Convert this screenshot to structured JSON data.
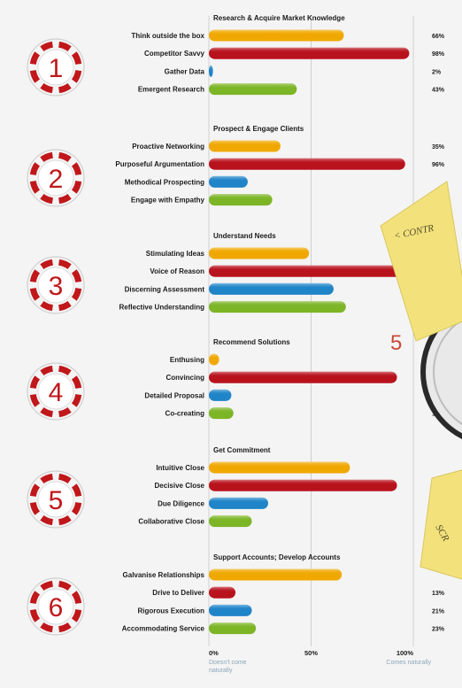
{
  "chart_data": {
    "type": "bar",
    "orientation": "horizontal",
    "xlim": [
      0,
      100
    ],
    "x_ticks": [
      "0%",
      "50%",
      "100%"
    ],
    "x_tick_notes": [
      "Doesn't come naturally",
      "Comes naturally"
    ],
    "grid": true,
    "sections": [
      {
        "number": "1",
        "title": "Research & Acquire Market Knowledge",
        "bars": [
          {
            "label": "Think outside the box",
            "value": 66,
            "value_label": "66%"
          },
          {
            "label": "Competitor Savvy",
            "value": 98,
            "value_label": "98%"
          },
          {
            "label": "Gather Data",
            "value": 2,
            "value_label": "2%"
          },
          {
            "label": "Emergent Research",
            "value": 43,
            "value_label": "43%"
          }
        ]
      },
      {
        "number": "2",
        "title": "Prospect & Engage Clients",
        "bars": [
          {
            "label": "Proactive Networking",
            "value": 35,
            "value_label": "35%"
          },
          {
            "label": "Purposeful Argumentation",
            "value": 96,
            "value_label": "96%"
          },
          {
            "label": "Methodical Prospecting",
            "value": 19,
            "value_label": ""
          },
          {
            "label": "Engage with Empathy",
            "value": 31,
            "value_label": ""
          }
        ]
      },
      {
        "number": "3",
        "title": "Understand Needs",
        "bars": [
          {
            "label": "Stimulating Ideas",
            "value": 49,
            "value_label": ""
          },
          {
            "label": "Voice of Reason",
            "value": 96,
            "value_label": ""
          },
          {
            "label": "Discerning Assessment",
            "value": 61,
            "value_label": ""
          },
          {
            "label": "Reflective Understanding",
            "value": 67,
            "value_label": ""
          }
        ]
      },
      {
        "number": "4",
        "title": "Recommend Solutions",
        "bars": [
          {
            "label": "Enthusing",
            "value": 5,
            "value_label": "5"
          },
          {
            "label": "Convincing",
            "value": 92,
            "value_label": "92"
          },
          {
            "label": "Detailed Proposal",
            "value": 11,
            "value_label": "11"
          },
          {
            "label": "Co-creating",
            "value": 12,
            "value_label": "12"
          }
        ]
      },
      {
        "number": "5",
        "title": "Get Commitment",
        "bars": [
          {
            "label": "Intuitive Close",
            "value": 69,
            "value_label": ""
          },
          {
            "label": "Decisive Close",
            "value": 92,
            "value_label": ""
          },
          {
            "label": "Due Diligence",
            "value": 29,
            "value_label": ""
          },
          {
            "label": "Collaborative Close",
            "value": 21,
            "value_label": ""
          }
        ]
      },
      {
        "number": "6",
        "title": "Support Accounts; Develop Accounts",
        "bars": [
          {
            "label": "Galvanise Relationships",
            "value": 65,
            "value_label": ""
          },
          {
            "label": "Drive to Deliver",
            "value": 13,
            "value_label": "13%"
          },
          {
            "label": "Rigorous Execution",
            "value": 21,
            "value_label": "21%"
          },
          {
            "label": "Accommodating Service",
            "value": 23,
            "value_label": "23%"
          }
        ]
      }
    ]
  },
  "overlay": {
    "stray_number": "5",
    "sticky_note_1_text": "< CONTR",
    "sticky_note_2_text": "SCR"
  },
  "colors": {
    "row1": "#f0a800",
    "row2": "#b8121d",
    "row3": "#1f84c8",
    "row4": "#7cb526",
    "badge": "#c0171b",
    "sticky": "#f3e27c"
  }
}
